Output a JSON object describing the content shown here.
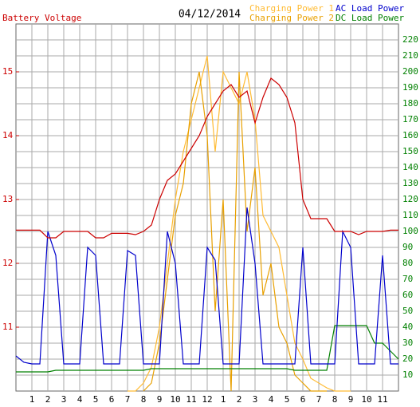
{
  "chart_data": {
    "type": "line",
    "title": "04/12/2014",
    "x": [
      0,
      0.5,
      1,
      1.5,
      2,
      2.5,
      3,
      3.5,
      4,
      4.5,
      5,
      5.5,
      6,
      6.5,
      7,
      7.5,
      8,
      8.5,
      9,
      9.5,
      10,
      10.5,
      11,
      11.5,
      12,
      12.5,
      13,
      13.5,
      14,
      14.5,
      15,
      15.5,
      16,
      16.5,
      17,
      17.5,
      18,
      18.5,
      19,
      19.5,
      20,
      20.5,
      21,
      21.5,
      22,
      22.5,
      23,
      23.5,
      24
    ],
    "xlim": [
      0,
      24
    ],
    "xticks": [
      1,
      2,
      3,
      4,
      5,
      6,
      7,
      8,
      9,
      10,
      11,
      12,
      {
        "value": 13,
        "label": "1"
      },
      {
        "value": 14,
        "label": "2"
      },
      {
        "value": 15,
        "label": "3"
      },
      {
        "value": 16,
        "label": "4"
      },
      {
        "value": 17,
        "label": "5"
      },
      {
        "value": 18,
        "label": "6"
      },
      {
        "value": 19,
        "label": "7"
      },
      {
        "value": 20,
        "label": "8"
      },
      {
        "value": 21,
        "label": "9"
      },
      {
        "value": 22,
        "label": "10"
      },
      {
        "value": 23,
        "label": "11"
      }
    ],
    "ylim": [
      10,
      15.75
    ],
    "yticks": [
      11,
      12,
      13,
      14,
      15
    ],
    "y2lim": [
      0,
      230
    ],
    "y2ticks": [
      10,
      20,
      30,
      40,
      50,
      60,
      70,
      80,
      90,
      100,
      110,
      120,
      130,
      140,
      150,
      160,
      170,
      180,
      190,
      200,
      210,
      220
    ],
    "grid": true,
    "series": [
      {
        "name": "Battery Voltage",
        "color": "#cc0000",
        "axis": "y",
        "values": [
          12.52,
          12.52,
          12.52,
          12.52,
          12.4,
          12.4,
          12.5,
          12.5,
          12.5,
          12.5,
          12.4,
          12.4,
          12.47,
          12.47,
          12.47,
          12.45,
          12.5,
          12.6,
          13.0,
          13.3,
          13.4,
          13.6,
          13.8,
          14.0,
          14.3,
          14.5,
          14.7,
          14.8,
          14.6,
          14.7,
          14.2,
          14.6,
          14.9,
          14.8,
          14.6,
          14.2,
          13.0,
          12.7,
          12.7,
          12.7,
          12.5,
          12.5,
          12.5,
          12.45,
          12.5,
          12.5,
          12.5,
          12.52,
          12.52
        ]
      },
      {
        "name": "Charging Power 1",
        "color": "#ffbb33",
        "axis": "y2",
        "values": [
          null,
          null,
          null,
          null,
          null,
          null,
          null,
          null,
          null,
          null,
          null,
          null,
          null,
          null,
          0,
          0,
          5,
          15,
          40,
          80,
          120,
          150,
          170,
          190,
          210,
          150,
          200,
          190,
          180,
          200,
          170,
          110,
          100,
          90,
          60,
          30,
          20,
          8,
          5,
          2,
          0,
          0,
          0,
          null,
          null,
          null,
          null,
          null,
          null
        ]
      },
      {
        "name": "Charging Power 2",
        "color": "#e8a000",
        "axis": "y2",
        "values": [
          null,
          null,
          null,
          null,
          null,
          null,
          null,
          null,
          null,
          null,
          null,
          null,
          null,
          null,
          null,
          null,
          0,
          5,
          30,
          70,
          110,
          130,
          180,
          200,
          160,
          50,
          120,
          0,
          200,
          100,
          140,
          60,
          80,
          40,
          30,
          10,
          5,
          0,
          0,
          0,
          null,
          null,
          null,
          null,
          null,
          null,
          null,
          null,
          null
        ]
      },
      {
        "name": "AC Load Power",
        "color": "#0000cc",
        "axis": "y2",
        "values": [
          22,
          18,
          17,
          17,
          100,
          85,
          17,
          17,
          17,
          90,
          85,
          17,
          17,
          17,
          88,
          85,
          17,
          17,
          17,
          100,
          80,
          17,
          17,
          17,
          90,
          82,
          17,
          17,
          17,
          115,
          80,
          17,
          17,
          17,
          17,
          17,
          90,
          17,
          17,
          17,
          17,
          100,
          90,
          17,
          17,
          17,
          85,
          17,
          17
        ]
      },
      {
        "name": "DC Load Power",
        "color": "#008000",
        "axis": "y2",
        "values": [
          12,
          12,
          12,
          12,
          12,
          13,
          13,
          13,
          13,
          13,
          13,
          13,
          13,
          13,
          13,
          13,
          13,
          14,
          14,
          14,
          14,
          14,
          14,
          14,
          14,
          14,
          14,
          14,
          14,
          14,
          14,
          14,
          14,
          14,
          14,
          13,
          13,
          13,
          13,
          13,
          41,
          41,
          41,
          41,
          41,
          30,
          30,
          25,
          20
        ]
      }
    ]
  }
}
